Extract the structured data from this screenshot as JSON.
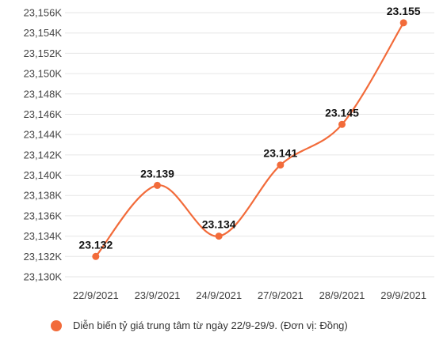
{
  "chart_data": {
    "type": "line",
    "categories": [
      "22/9/2021",
      "23/9/2021",
      "24/9/2021",
      "27/9/2021",
      "28/9/2021",
      "29/9/2021"
    ],
    "series": [
      {
        "name": "Diễn biến tỷ giá trung tâm từ ngày 22/9-29/9. (Đơn vị: Đồng)",
        "values": [
          23132,
          23139,
          23134,
          23141,
          23145,
          23155
        ],
        "data_labels": [
          "23.132",
          "23.139",
          "23.134",
          "23.141",
          "23.145",
          "23.155"
        ],
        "color": "#f26b3a"
      }
    ],
    "ylim": [
      23130,
      23156
    ],
    "y_ticks": [
      "23,130K",
      "23,132K",
      "23,134K",
      "23,136K",
      "23,138K",
      "23,140K",
      "23,142K",
      "23,144K",
      "23,146K",
      "23,148K",
      "23,150K",
      "23,152K",
      "23,154K",
      "23,156K"
    ],
    "grid": true,
    "legend_position": "bottom"
  }
}
